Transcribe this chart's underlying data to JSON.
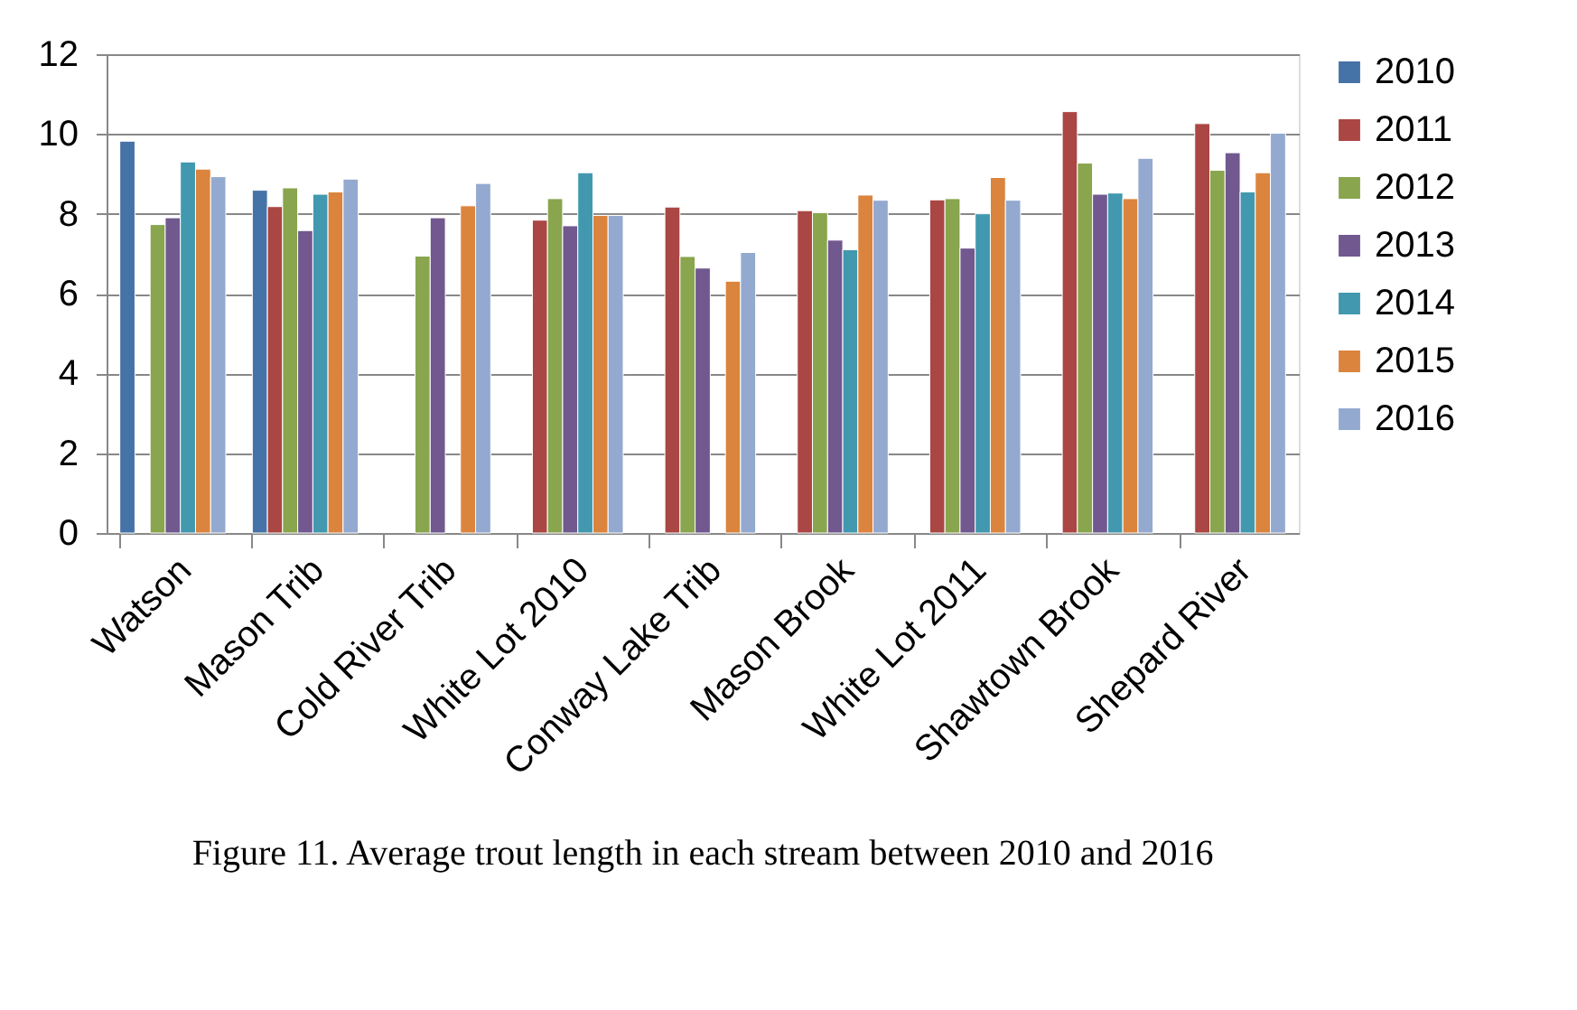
{
  "chart_data": {
    "type": "bar",
    "categories": [
      "Watson",
      "Mason Trib",
      "Cold River Trib",
      "White Lot 2010",
      "Conway Lake Trib",
      "Mason Brook",
      "White Lot 2011",
      "Shawtown Brook",
      "Shepard River"
    ],
    "series": [
      {
        "name": "2010",
        "color": "#4572a7",
        "values": [
          9.82,
          8.59,
          null,
          null,
          null,
          null,
          null,
          null,
          null
        ]
      },
      {
        "name": "2011",
        "color": "#aa4643",
        "values": [
          null,
          8.18,
          null,
          7.84,
          8.17,
          8.08,
          8.35,
          10.56,
          10.26
        ]
      },
      {
        "name": "2012",
        "color": "#89a54e",
        "values": [
          7.73,
          8.65,
          6.94,
          8.38,
          6.93,
          8.03,
          8.38,
          9.27,
          9.09
        ]
      },
      {
        "name": "2013",
        "color": "#71588f",
        "values": [
          7.9,
          7.58,
          7.9,
          7.7,
          6.64,
          7.34,
          7.14,
          8.49,
          9.53
        ]
      },
      {
        "name": "2014",
        "color": "#4198af",
        "values": [
          9.3,
          8.49,
          null,
          9.03,
          null,
          7.1,
          8.0,
          8.52,
          8.55
        ]
      },
      {
        "name": "2015",
        "color": "#db843d",
        "values": [
          9.12,
          8.55,
          8.2,
          7.96,
          6.31,
          8.47,
          8.91,
          8.38,
          9.03
        ]
      },
      {
        "name": "2016",
        "color": "#93a9cf",
        "values": [
          8.93,
          8.87,
          8.76,
          7.96,
          7.03,
          8.34,
          8.34,
          9.39,
          10.02
        ]
      }
    ],
    "ylim": [
      0,
      12
    ],
    "yticks": [
      0,
      2,
      4,
      6,
      8,
      10,
      12
    ],
    "grid": "y",
    "legend": "right",
    "annotations": [
      "Figure 11. Average trout length in each stream between 2010 and 2016"
    ]
  }
}
